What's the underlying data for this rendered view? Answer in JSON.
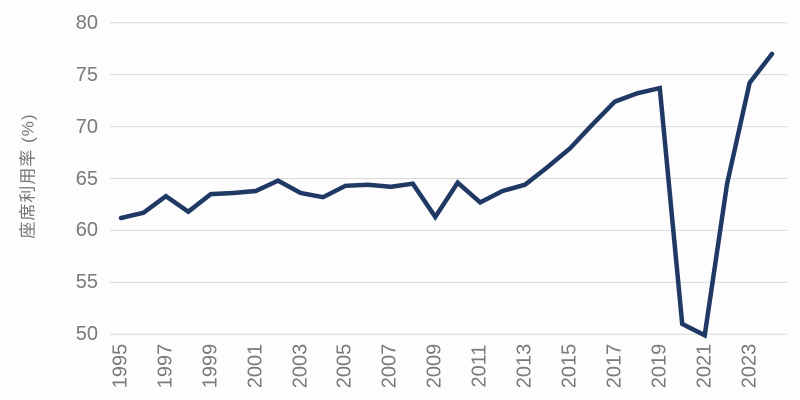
{
  "chart_data": {
    "type": "line",
    "title": "",
    "xlabel": "",
    "ylabel": "座席利用率 (%)",
    "x": [
      1995,
      1996,
      1997,
      1998,
      1999,
      2000,
      2001,
      2002,
      2003,
      2004,
      2005,
      2006,
      2007,
      2008,
      2009,
      2010,
      2011,
      2012,
      2013,
      2014,
      2015,
      2016,
      2017,
      2018,
      2019,
      2020,
      2021,
      2022,
      2023,
      2024
    ],
    "series": [
      {
        "name": "座席利用率",
        "values": [
          61.2,
          61.7,
          63.3,
          61.8,
          63.5,
          63.6,
          63.8,
          64.8,
          63.6,
          63.2,
          64.3,
          64.4,
          64.2,
          64.5,
          61.3,
          64.6,
          62.7,
          63.8,
          64.4,
          66.1,
          67.9,
          70.2,
          72.4,
          73.2,
          73.7,
          51.0,
          49.9,
          64.5,
          74.2,
          77.0
        ]
      }
    ],
    "ylim": [
      50,
      80
    ],
    "yticks": [
      50,
      55,
      60,
      65,
      70,
      75,
      80
    ],
    "xticks": [
      1995,
      1997,
      1999,
      2001,
      2003,
      2005,
      2007,
      2009,
      2011,
      2013,
      2015,
      2017,
      2019,
      2021,
      2023
    ],
    "grid": "horizontal",
    "legend": "none",
    "colors": {
      "line": "#1f3864",
      "gridline": "#d9d9d9",
      "tick_text": "#7a7a7a",
      "background": "#fdfdfe"
    }
  }
}
